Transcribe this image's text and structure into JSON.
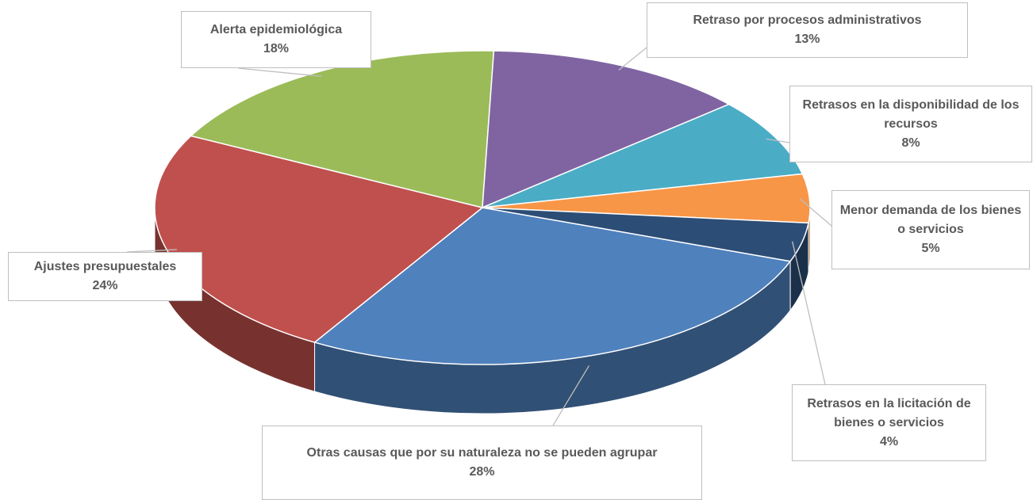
{
  "chart_data": {
    "type": "pie",
    "categories": [
      "Otras causas que por su naturaleza no se pueden agrupar",
      "Ajustes presupuestales",
      "Alerta epidemiológica",
      "Retraso por procesos administrativos",
      "Retrasos en la disponibilidad de los recursos",
      "Menor demanda de los bienes o servicios",
      "Retrasos en la licitación de bienes o servicios"
    ],
    "values": [
      28,
      24,
      18,
      13,
      8,
      5,
      4
    ],
    "value_labels": [
      "28%",
      "24%",
      "18%",
      "13%",
      "8%",
      "5%",
      "4%"
    ],
    "colors": [
      "#4f81bd",
      "#c0504d",
      "#9bbb59",
      "#8064a2",
      "#4bacc6",
      "#f79646",
      "#2c4d75"
    ]
  }
}
